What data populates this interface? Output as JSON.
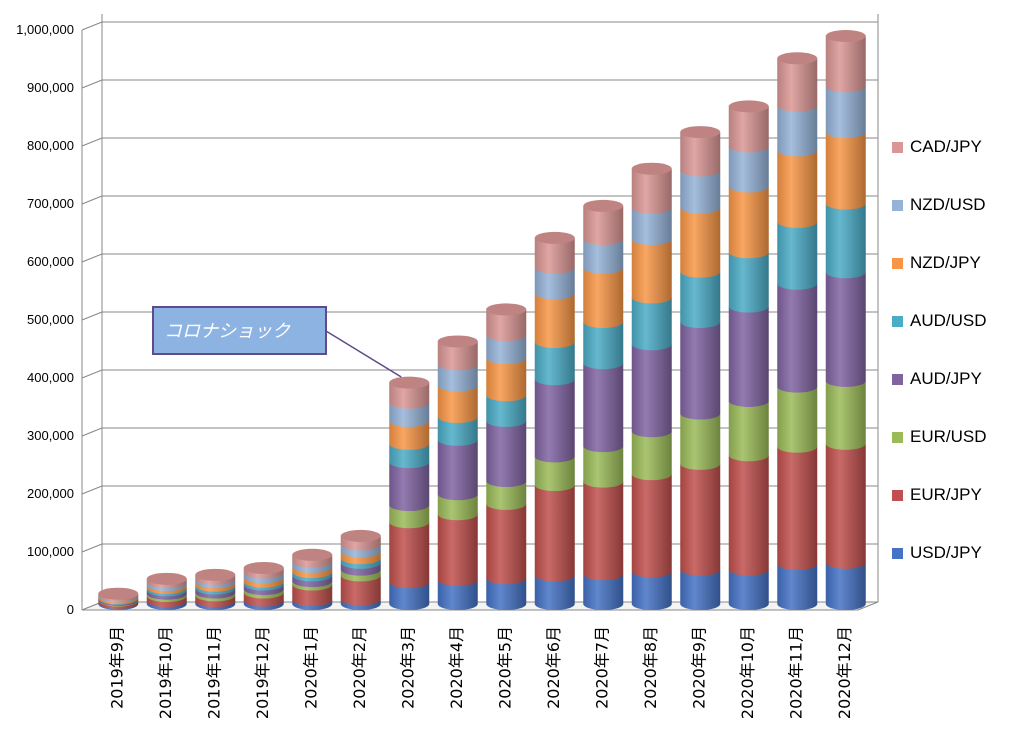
{
  "chart_data": {
    "type": "bar",
    "stacked": true,
    "style": "3d-cylinder",
    "title": "",
    "xlabel": "",
    "ylabel": "",
    "ylim": [
      0,
      1000000
    ],
    "yticks": [
      "0",
      "100,000",
      "200,000",
      "300,000",
      "400,000",
      "500,000",
      "600,000",
      "700,000",
      "800,000",
      "900,000",
      "1,000,000"
    ],
    "categories": [
      "2019年9月",
      "2019年10月",
      "2019年11月",
      "2019年12月",
      "2020年1月",
      "2020年2月",
      "2020年3月",
      "2020年4月",
      "2020年5月",
      "2020年6月",
      "2020年7月",
      "2020年8月",
      "2020年9月",
      "2020年10月",
      "2020年11月",
      "2020年12月"
    ],
    "series": [
      {
        "name": "USD/JPY",
        "color": "#4472C4",
        "values": [
          2000,
          5000,
          5000,
          6000,
          7000,
          8000,
          38000,
          42000,
          45000,
          50000,
          52000,
          57000,
          60000,
          60000,
          70000,
          72000
        ]
      },
      {
        "name": "EUR/JPY",
        "color": "#C0504D",
        "values": [
          4000,
          9000,
          10000,
          14000,
          27000,
          42000,
          105000,
          115000,
          130000,
          158000,
          162000,
          170000,
          185000,
          200000,
          205000,
          208000
        ]
      },
      {
        "name": "EUR/USD",
        "color": "#9BBB59",
        "values": [
          1000,
          4000,
          5000,
          6000,
          6000,
          10000,
          30000,
          35000,
          40000,
          50000,
          62000,
          75000,
          88000,
          95000,
          105000,
          110000
        ]
      },
      {
        "name": "AUD/JPY",
        "color": "#8064A2",
        "values": [
          2000,
          6000,
          7000,
          8000,
          10000,
          12000,
          75000,
          95000,
          105000,
          135000,
          145000,
          152000,
          160000,
          165000,
          180000,
          190000
        ]
      },
      {
        "name": "AUD/USD",
        "color": "#4BACC6",
        "values": [
          1000,
          4000,
          5000,
          5000,
          6000,
          8000,
          32000,
          40000,
          45000,
          65000,
          72000,
          82000,
          88000,
          95000,
          108000,
          120000
        ]
      },
      {
        "name": "NZD/JPY",
        "color": "#F79646",
        "values": [
          3000,
          5000,
          6000,
          8000,
          9000,
          12000,
          40000,
          55000,
          65000,
          85000,
          95000,
          102000,
          112000,
          115000,
          125000,
          125000
        ]
      },
      {
        "name": "NZD/USD",
        "color": "#95B3D7",
        "values": [
          2000,
          5000,
          6000,
          8000,
          9000,
          12000,
          32000,
          37000,
          40000,
          45000,
          50000,
          55000,
          65000,
          70000,
          78000,
          80000
        ]
      },
      {
        "name": "CAD/JPY",
        "color": "#D99694",
        "values": [
          3000,
          6000,
          7000,
          8000,
          12000,
          15000,
          35000,
          40000,
          45000,
          52000,
          58000,
          68000,
          67000,
          70000,
          83000,
          88000
        ]
      }
    ],
    "legend_position": "right",
    "grid": true
  },
  "callout": {
    "text": "コロナショック",
    "target_category": "2020年3月"
  }
}
